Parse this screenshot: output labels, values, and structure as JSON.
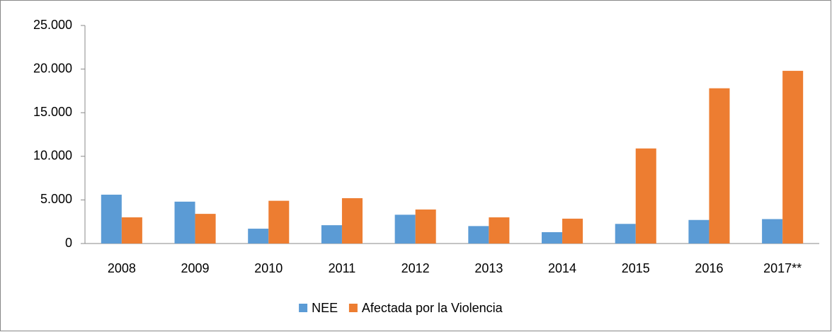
{
  "chart_data": {
    "type": "bar",
    "categories": [
      "2008",
      "2009",
      "2010",
      "2011",
      "2012",
      "2013",
      "2014",
      "2015",
      "2016",
      "2017**"
    ],
    "series": [
      {
        "name": "NEE",
        "color": "#5b9bd5",
        "values": [
          5600,
          4800,
          1700,
          2100,
          3300,
          2000,
          1300,
          2250,
          2700,
          2800
        ]
      },
      {
        "name": "Afectada por la Violencia",
        "color": "#ed7d31",
        "values": [
          3000,
          3400,
          4900,
          5200,
          3900,
          3000,
          2850,
          10900,
          17800,
          19800
        ]
      }
    ],
    "ylim": [
      0,
      25000
    ],
    "yticks": [
      0,
      {
        "value": 5000,
        "label": "5.000"
      },
      {
        "value": 10000,
        "label": "10.000"
      },
      {
        "value": 15000,
        "label": "15.000"
      },
      {
        "value": 20000,
        "label": "20.000"
      },
      {
        "value": 25000,
        "label": "25.000"
      }
    ],
    "grid": false,
    "legend": "bottom"
  }
}
